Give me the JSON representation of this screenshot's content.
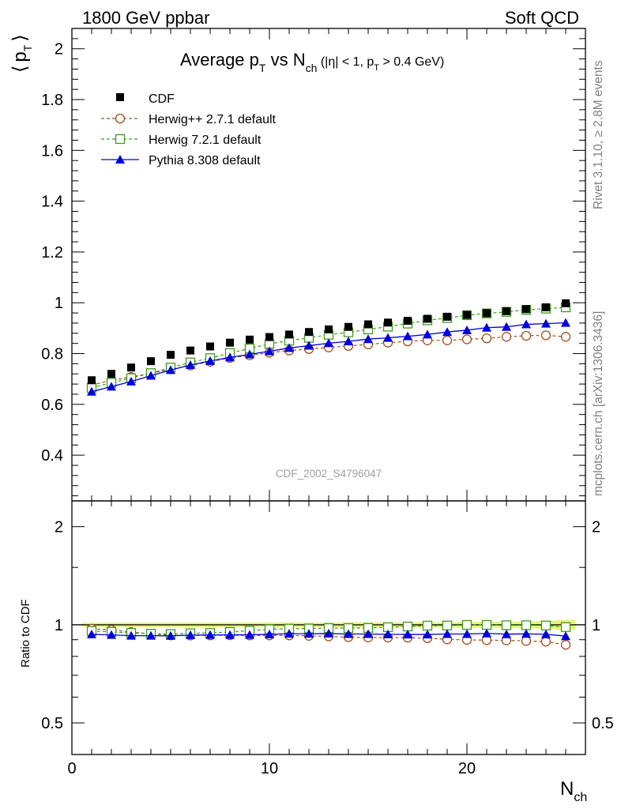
{
  "header": {
    "left": "1800 GeV ppbar",
    "right": "Soft QCD"
  },
  "side_labels": {
    "rivet": "Rivet 3.1.10, ≥ 2.8M events",
    "mcplots": "mcplots.cern.ch [arXiv:1306.3436]"
  },
  "analysis_id": "CDF_2002_S4796047",
  "main_plot": {
    "title_parts": {
      "pre": "Average p",
      "sub1": "T",
      "mid": " vs N",
      "sub2": "ch",
      "cond_a": " (|η| < 1, p",
      "sub3": "T",
      "cond_b": " > 0.4 GeV)"
    },
    "ylabel": "⟨ pᵀ ⟩",
    "ylabel_parts": {
      "open": "⟨",
      "p": "p",
      "sub": "T",
      "close": "⟩"
    },
    "yticks": [
      "0.4",
      "0.6",
      "0.8",
      "1",
      "1.2",
      "1.4",
      "1.6",
      "1.8",
      "2"
    ]
  },
  "ratio_plot": {
    "ylabel": "Ratio to CDF",
    "yticks_left": [
      "0.5",
      "1",
      "2"
    ],
    "yticks_right": [
      "0.5",
      "1",
      "2"
    ]
  },
  "xaxis": {
    "label_main": "N",
    "label_sub": "ch",
    "ticks": [
      "0",
      "10",
      "20"
    ]
  },
  "legend": [
    {
      "key": "cdf",
      "label": "CDF"
    },
    {
      "key": "herwigpp",
      "label": "Herwig++ 2.7.1 default"
    },
    {
      "key": "herwig7",
      "label": "Herwig 7.2.1 default"
    },
    {
      "key": "pythia",
      "label": "Pythia 8.308 default"
    }
  ],
  "colors": {
    "cdf": "#000000",
    "herwigpp": "#a0501e",
    "herwig7": "#3f9a1f",
    "pythia": "#0000dd",
    "band": "#e5f57a"
  },
  "chart_data": [
    {
      "type": "scatter",
      "xlim": [
        0,
        26
      ],
      "ylim": [
        0.22,
        2.08
      ],
      "x": [
        1,
        2,
        3,
        4,
        5,
        6,
        7,
        8,
        9,
        10,
        11,
        12,
        13,
        14,
        15,
        16,
        17,
        18,
        19,
        20,
        21,
        22,
        23,
        24,
        25
      ],
      "series": [
        {
          "name": "CDF",
          "key": "cdf",
          "values": [
            0.695,
            0.72,
            0.745,
            0.77,
            0.795,
            0.812,
            0.828,
            0.843,
            0.855,
            0.865,
            0.875,
            0.885,
            0.895,
            0.905,
            0.915,
            0.922,
            0.929,
            0.937,
            0.945,
            0.952,
            0.959,
            0.967,
            0.975,
            0.982,
            0.998
          ]
        },
        {
          "name": "Herwig++ 2.7.1 default",
          "key": "herwigpp",
          "values": [
            0.676,
            0.695,
            0.708,
            0.722,
            0.738,
            0.753,
            0.768,
            0.783,
            0.793,
            0.803,
            0.812,
            0.818,
            0.824,
            0.83,
            0.836,
            0.843,
            0.848,
            0.852,
            0.852,
            0.856,
            0.86,
            0.866,
            0.87,
            0.872,
            0.866
          ]
        },
        {
          "name": "Herwig 7.2.1 default",
          "key": "herwig7",
          "values": [
            0.665,
            0.685,
            0.703,
            0.723,
            0.745,
            0.765,
            0.782,
            0.802,
            0.82,
            0.838,
            0.851,
            0.862,
            0.874,
            0.884,
            0.895,
            0.906,
            0.918,
            0.931,
            0.94,
            0.951,
            0.958,
            0.964,
            0.972,
            0.977,
            0.982
          ]
        },
        {
          "name": "Pythia 8.308 default",
          "key": "pythia",
          "values": [
            0.65,
            0.67,
            0.69,
            0.713,
            0.735,
            0.755,
            0.771,
            0.785,
            0.797,
            0.809,
            0.822,
            0.831,
            0.841,
            0.848,
            0.857,
            0.862,
            0.868,
            0.875,
            0.885,
            0.892,
            0.902,
            0.905,
            0.915,
            0.918,
            0.921
          ]
        }
      ]
    },
    {
      "type": "scatter",
      "xlim": [
        0,
        26
      ],
      "ylim": [
        0.4,
        2.4
      ],
      "scale": "log",
      "x": [
        1,
        2,
        3,
        4,
        5,
        6,
        7,
        8,
        9,
        10,
        11,
        12,
        13,
        14,
        15,
        16,
        17,
        18,
        19,
        20,
        21,
        22,
        23,
        24,
        25
      ],
      "band": {
        "x_from": 0.5,
        "x_to": 25.5,
        "low": [
          0.985,
          0.984,
          0.984,
          0.984,
          0.984,
          0.984,
          0.983,
          0.983,
          0.983,
          0.983,
          0.983,
          0.983,
          0.983,
          0.982,
          0.982,
          0.982,
          0.982,
          0.981,
          0.981,
          0.98,
          0.98,
          0.978,
          0.976,
          0.972,
          0.965
        ],
        "high": [
          1.015,
          1.016,
          1.016,
          1.016,
          1.016,
          1.016,
          1.017,
          1.017,
          1.017,
          1.017,
          1.017,
          1.017,
          1.017,
          1.018,
          1.018,
          1.018,
          1.018,
          1.019,
          1.019,
          1.02,
          1.02,
          1.022,
          1.024,
          1.028,
          1.035
        ]
      },
      "series": [
        {
          "name": "Herwig++ 2.7.1 default",
          "key": "herwigpp",
          "values": [
            0.972,
            0.965,
            0.95,
            0.938,
            0.928,
            0.927,
            0.928,
            0.929,
            0.928,
            0.928,
            0.928,
            0.925,
            0.921,
            0.917,
            0.914,
            0.914,
            0.913,
            0.91,
            0.902,
            0.899,
            0.897,
            0.896,
            0.892,
            0.888,
            0.868
          ]
        },
        {
          "name": "Herwig 7.2.1 default",
          "key": "herwig7",
          "values": [
            0.957,
            0.951,
            0.944,
            0.939,
            0.937,
            0.942,
            0.944,
            0.951,
            0.959,
            0.969,
            0.973,
            0.974,
            0.977,
            0.977,
            0.978,
            0.983,
            0.988,
            0.994,
            0.995,
            0.999,
            0.999,
            0.997,
            0.997,
            0.995,
            0.984
          ]
        },
        {
          "name": "Pythia 8.308 default",
          "key": "pythia",
          "values": [
            0.935,
            0.931,
            0.926,
            0.926,
            0.925,
            0.93,
            0.931,
            0.931,
            0.932,
            0.935,
            0.939,
            0.939,
            0.94,
            0.937,
            0.937,
            0.935,
            0.934,
            0.934,
            0.937,
            0.937,
            0.941,
            0.936,
            0.938,
            0.935,
            0.923
          ]
        }
      ]
    }
  ]
}
